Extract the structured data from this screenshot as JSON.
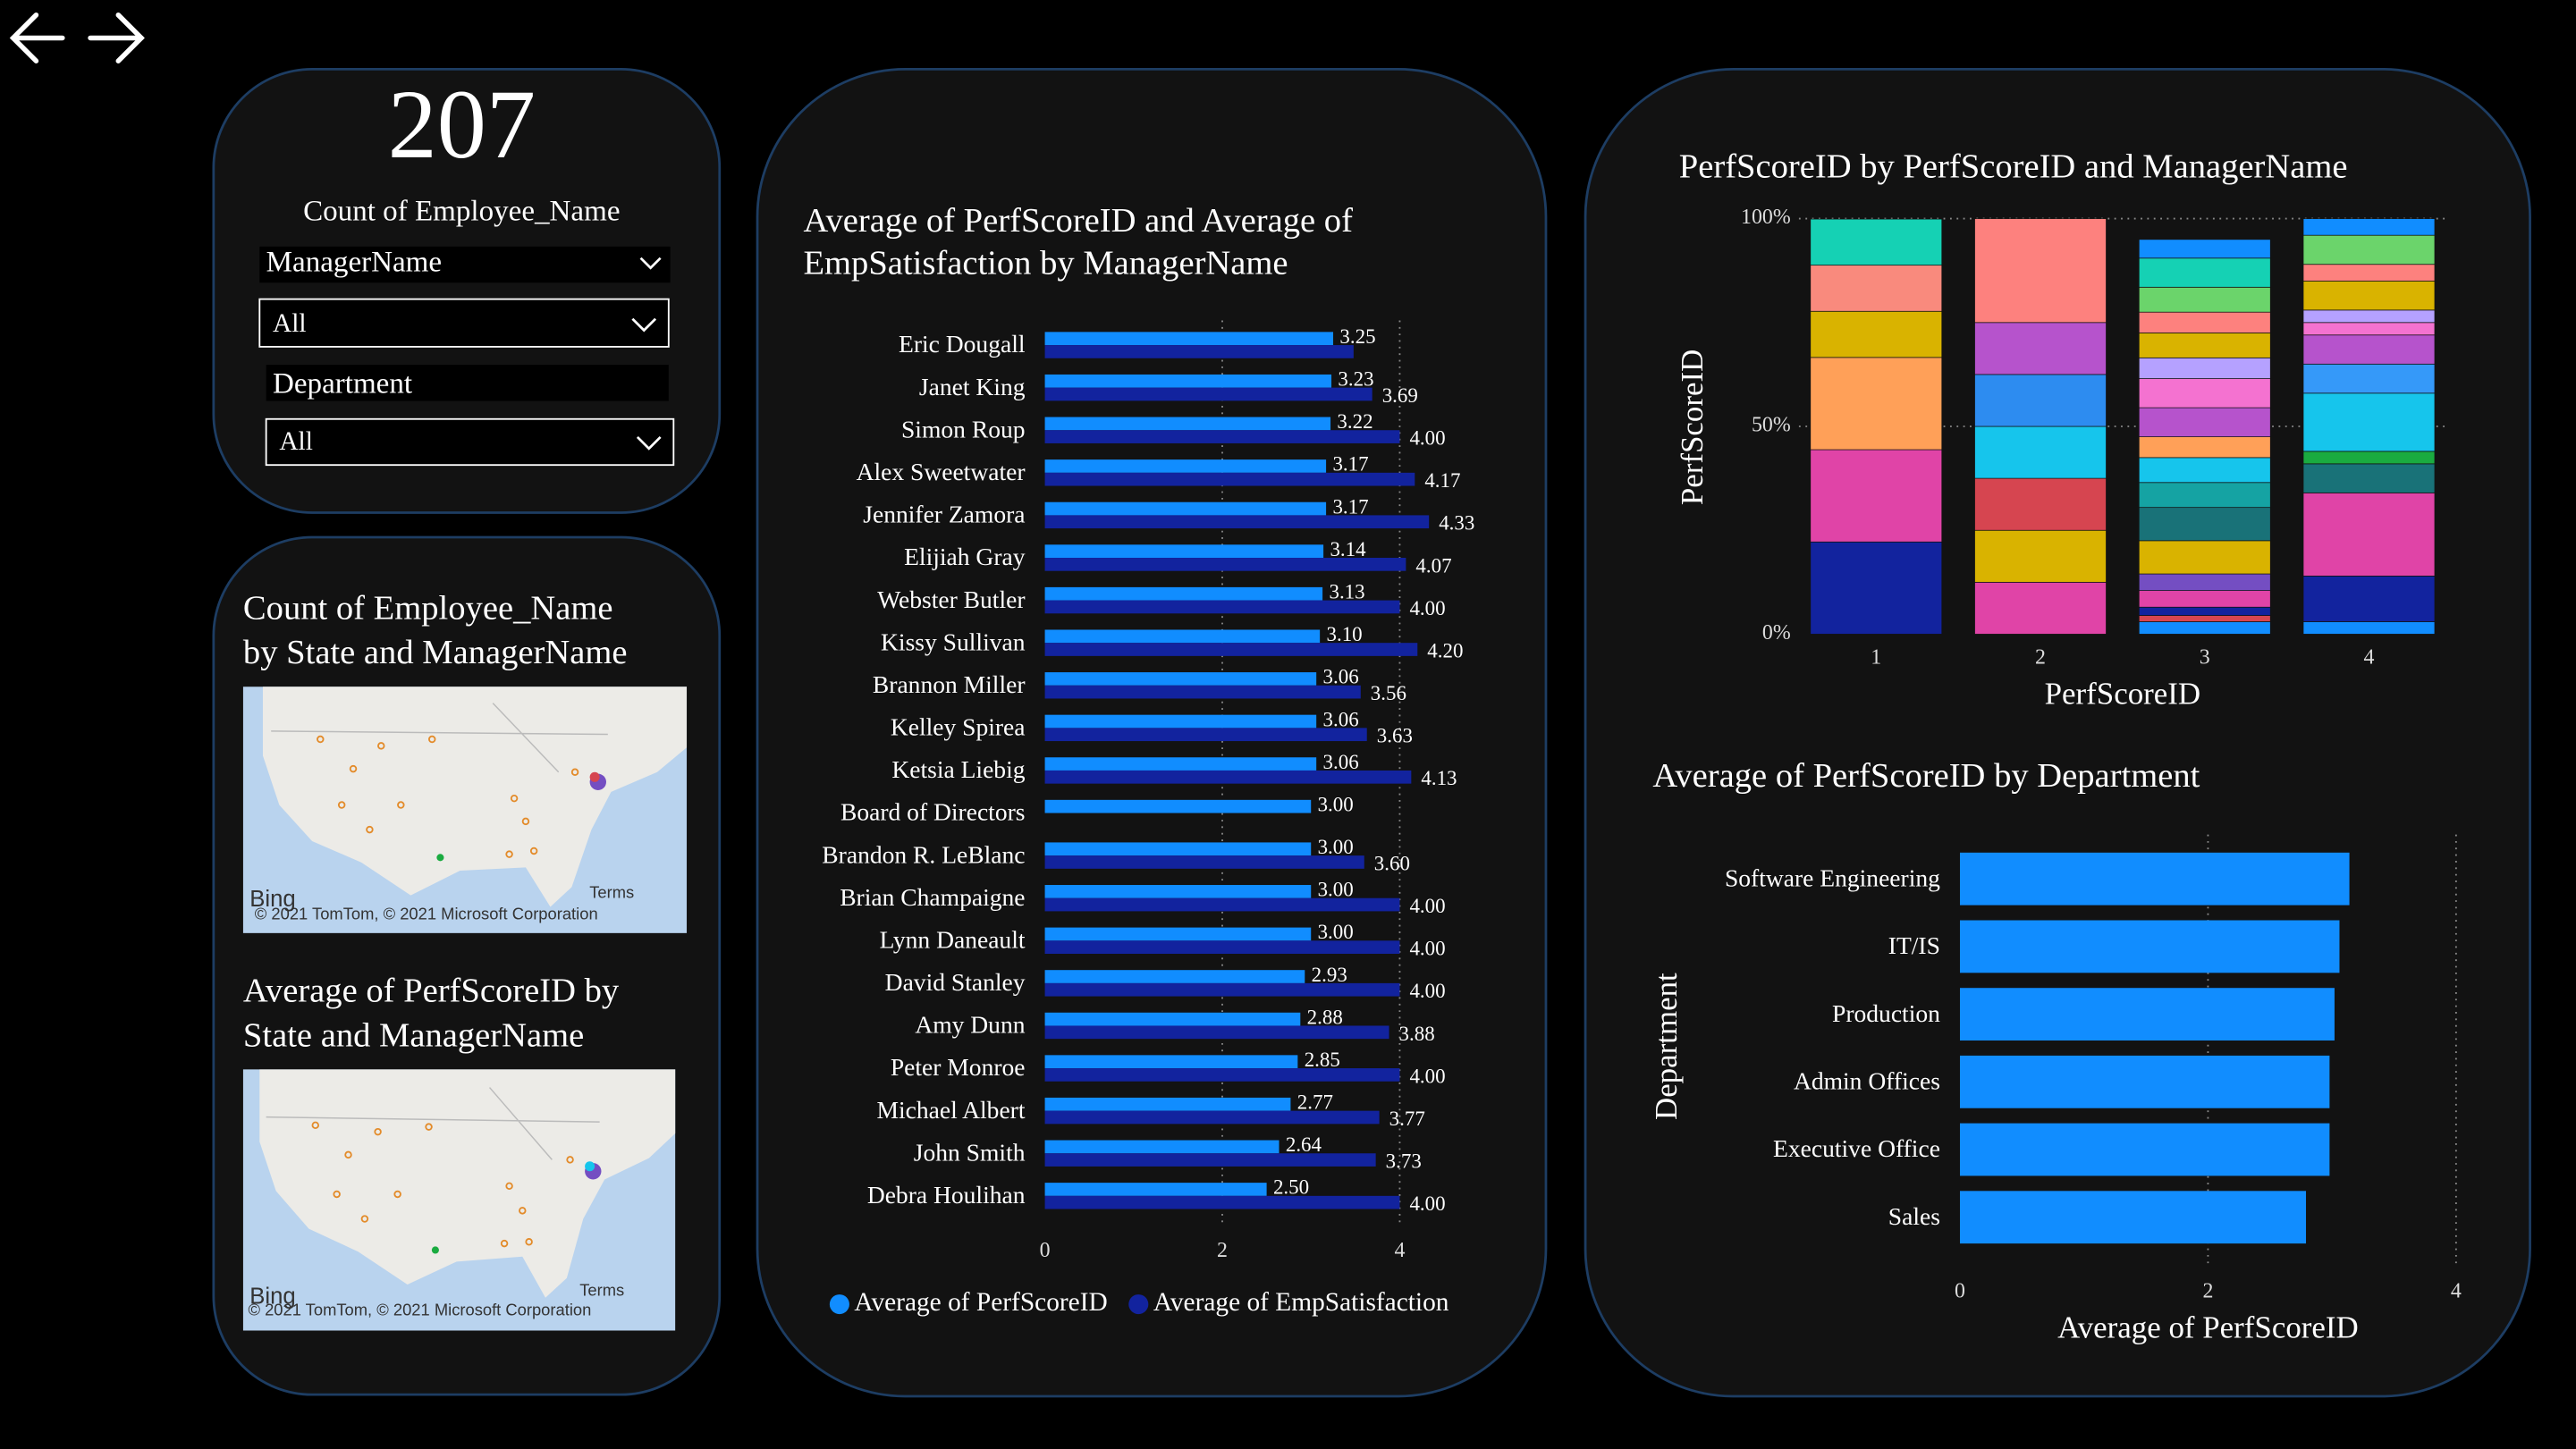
{
  "card": {
    "value": 207,
    "label": "Count of Employee_Name"
  },
  "slicers": [
    {
      "title": "ManagerName",
      "selection": "All"
    },
    {
      "title": "Department",
      "selection": "All"
    }
  ],
  "maps": [
    {
      "title": [
        "Count of Employee_Name",
        "by State and ManagerName"
      ],
      "brand": "Bing",
      "terms": "Terms",
      "attribution": "© 2021 TomTom, © 2021 Microsoft Corporation"
    },
    {
      "title": [
        "Average of PerfScoreID by",
        "State and ManagerName"
      ],
      "brand": "Bing",
      "terms": "Terms",
      "attribution": "© 2021 TomTom, © 2021 Microsoft Corporation"
    }
  ],
  "chart_data": [
    {
      "type": "bar",
      "title": [
        "Average of PerfScoreID and Average of",
        "EmpSatisfaction by ManagerName"
      ],
      "categories": [
        "Eric Dougall",
        "Janet King",
        "Simon Roup",
        "Alex Sweetwater",
        "Jennifer Zamora",
        "Elijiah Gray",
        "Webster Butler",
        "Kissy Sullivan",
        "Brannon Miller",
        "Kelley Spirea",
        "Ketsia Liebig",
        "Board of Directors",
        "Brandon R. LeBlanc",
        "Brian Champaigne",
        "Lynn Daneault",
        "David Stanley",
        "Amy Dunn",
        "Peter Monroe",
        "Michael Albert",
        "John Smith",
        "Debra Houlihan"
      ],
      "series": [
        {
          "name": "Average of PerfScoreID",
          "color": "#118DFF",
          "values": [
            3.25,
            3.23,
            3.22,
            3.17,
            3.17,
            3.14,
            3.13,
            3.1,
            3.06,
            3.06,
            3.06,
            3.0,
            3.0,
            3.0,
            3.0,
            2.93,
            2.88,
            2.85,
            2.77,
            2.64,
            2.5
          ],
          "value_labels": [
            "3.25",
            "3.23",
            "3.22",
            "3.17",
            "3.17",
            "3.14",
            "3.13",
            "3.10",
            "3.06",
            "3.06",
            "3.06",
            "3.00",
            "3.00",
            "3.00",
            "3.00",
            "2.93",
            "2.88",
            "2.85",
            "2.77",
            "2.64",
            "2.50"
          ]
        },
        {
          "name": "Average of EmpSatisfaction",
          "color": "#12239E",
          "values": [
            3.48,
            3.69,
            4.0,
            4.17,
            4.33,
            4.07,
            4.0,
            4.2,
            3.56,
            3.63,
            4.13,
            null,
            3.6,
            4.0,
            4.0,
            4.0,
            3.88,
            4.0,
            3.77,
            3.73,
            4.0
          ],
          "value_labels": [
            null,
            "3.69",
            "4.00",
            "4.17",
            "4.33",
            "4.07",
            "4.00",
            "4.20",
            "3.56",
            "3.63",
            "4.13",
            null,
            "3.60",
            "4.00",
            "4.00",
            "4.00",
            "3.88",
            "4.00",
            "3.77",
            "3.73",
            "4.00"
          ]
        }
      ],
      "xlim": [
        0,
        4.4
      ],
      "xticks": [
        0,
        2,
        4
      ],
      "grid": true,
      "legend": "bottom"
    },
    {
      "type": "stacked100",
      "title": [
        "PerfScoreID by PerfScoreID and ManagerName"
      ],
      "x_label": "PerfScoreID",
      "y_label": "PerfScoreID",
      "categories": [
        "1",
        "2",
        "3",
        "4"
      ],
      "segments": [
        [
          {
            "color": "#12239E",
            "value": 22.2
          },
          {
            "color": "#E044A7",
            "value": 22.2
          },
          {
            "color": "#FFA058",
            "value": 22.2
          },
          {
            "color": "#D9B300",
            "value": 11.1
          },
          {
            "color": "#F98A7D",
            "value": 11.1
          },
          {
            "color": "#15D1B4",
            "value": 11.1
          }
        ],
        [
          {
            "color": "#E044A7",
            "value": 12.5
          },
          {
            "color": "#D9B300",
            "value": 12.5
          },
          {
            "color": "#D64550",
            "value": 12.5
          },
          {
            "color": "#16C5EC",
            "value": 12.5
          },
          {
            "color": "#2D8CF0",
            "value": 12.5
          },
          {
            "color": "#B653CC",
            "value": 12.5
          },
          {
            "color": "#FD817E",
            "value": 25
          }
        ],
        [
          {
            "color": "#118DFF",
            "value": 3
          },
          {
            "color": "#D64550",
            "value": 1.5
          },
          {
            "color": "#12239E",
            "value": 2
          },
          {
            "color": "#E044A7",
            "value": 4
          },
          {
            "color": "#744EC2",
            "value": 4
          },
          {
            "color": "#D9B300",
            "value": 8
          },
          {
            "color": "#197278",
            "value": 8
          },
          {
            "color": "#15A3A3",
            "value": 6
          },
          {
            "color": "#16C5EC",
            "value": 6
          },
          {
            "color": "#FFA058",
            "value": 5
          },
          {
            "color": "#B653CC",
            "value": 7
          },
          {
            "color": "#F472D0",
            "value": 7
          },
          {
            "color": "#B5A1FF",
            "value": 5
          },
          {
            "color": "#D9B300",
            "value": 6
          },
          {
            "color": "#FD817E",
            "value": 5
          },
          {
            "color": "#6BD46B",
            "value": 6
          },
          {
            "color": "#15D1B4",
            "value": 7
          },
          {
            "color": "#118DFF",
            "value": 4.5
          }
        ],
        [
          {
            "color": "#118DFF",
            "value": 3
          },
          {
            "color": "#12239E",
            "value": 11
          },
          {
            "color": "#E044A7",
            "value": 20
          },
          {
            "color": "#197278",
            "value": 7
          },
          {
            "color": "#1AAB40",
            "value": 3
          },
          {
            "color": "#16C5EC",
            "value": 14
          },
          {
            "color": "#3599F9",
            "value": 7
          },
          {
            "color": "#B653CC",
            "value": 7
          },
          {
            "color": "#F472D0",
            "value": 3
          },
          {
            "color": "#B5A1FF",
            "value": 3
          },
          {
            "color": "#D9B300",
            "value": 7
          },
          {
            "color": "#FD817E",
            "value": 4
          },
          {
            "color": "#6BD46B",
            "value": 7
          },
          {
            "color": "#118DFF",
            "value": 4
          }
        ]
      ],
      "ylim": [
        0,
        100
      ],
      "yticks": [
        {
          "value": 0,
          "label": "0%"
        },
        {
          "value": 50,
          "label": "50%"
        },
        {
          "value": 100,
          "label": "100%"
        }
      ],
      "grid": true
    },
    {
      "type": "bar",
      "title": [
        "Average of PerfScoreID by Department"
      ],
      "x_label": "Average of PerfScoreID",
      "y_label": "Department",
      "categories": [
        "Software Engineering",
        "IT/IS",
        "Production",
        "Admin Offices",
        "Executive Office",
        "Sales"
      ],
      "values": [
        3.14,
        3.06,
        3.02,
        2.98,
        2.98,
        2.79
      ],
      "color": "#118DFF",
      "xlim": [
        0,
        4
      ],
      "xticks": [
        0,
        2,
        4
      ],
      "grid": true
    }
  ]
}
